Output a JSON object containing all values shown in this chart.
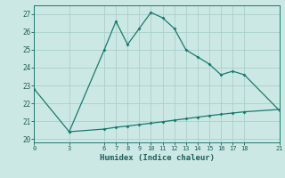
{
  "xlabel": "Humidex (Indice chaleur)",
  "background_color": "#cce8e4",
  "grid_color": "#aacfcc",
  "line_color": "#1a7a6e",
  "xlim": [
    0,
    21
  ],
  "ylim": [
    19.8,
    27.5
  ],
  "yticks": [
    20,
    21,
    22,
    23,
    24,
    25,
    26,
    27
  ],
  "xticks": [
    0,
    3,
    6,
    7,
    8,
    9,
    10,
    11,
    12,
    13,
    14,
    15,
    16,
    17,
    18,
    21
  ],
  "line1_x": [
    0,
    3,
    6,
    7,
    8,
    9,
    10,
    11,
    12,
    13,
    14,
    15,
    16,
    17,
    18,
    21
  ],
  "line1_y": [
    22.8,
    20.4,
    25.0,
    26.6,
    25.3,
    26.2,
    27.1,
    26.8,
    26.2,
    25.0,
    24.6,
    24.2,
    23.6,
    23.8,
    23.6,
    21.6
  ],
  "line2_x": [
    3,
    6,
    7,
    8,
    9,
    10,
    11,
    12,
    13,
    14,
    15,
    16,
    17,
    18,
    21
  ],
  "line2_y": [
    20.4,
    20.55,
    20.65,
    20.72,
    20.8,
    20.88,
    20.96,
    21.05,
    21.13,
    21.22,
    21.3,
    21.38,
    21.45,
    21.52,
    21.65
  ]
}
